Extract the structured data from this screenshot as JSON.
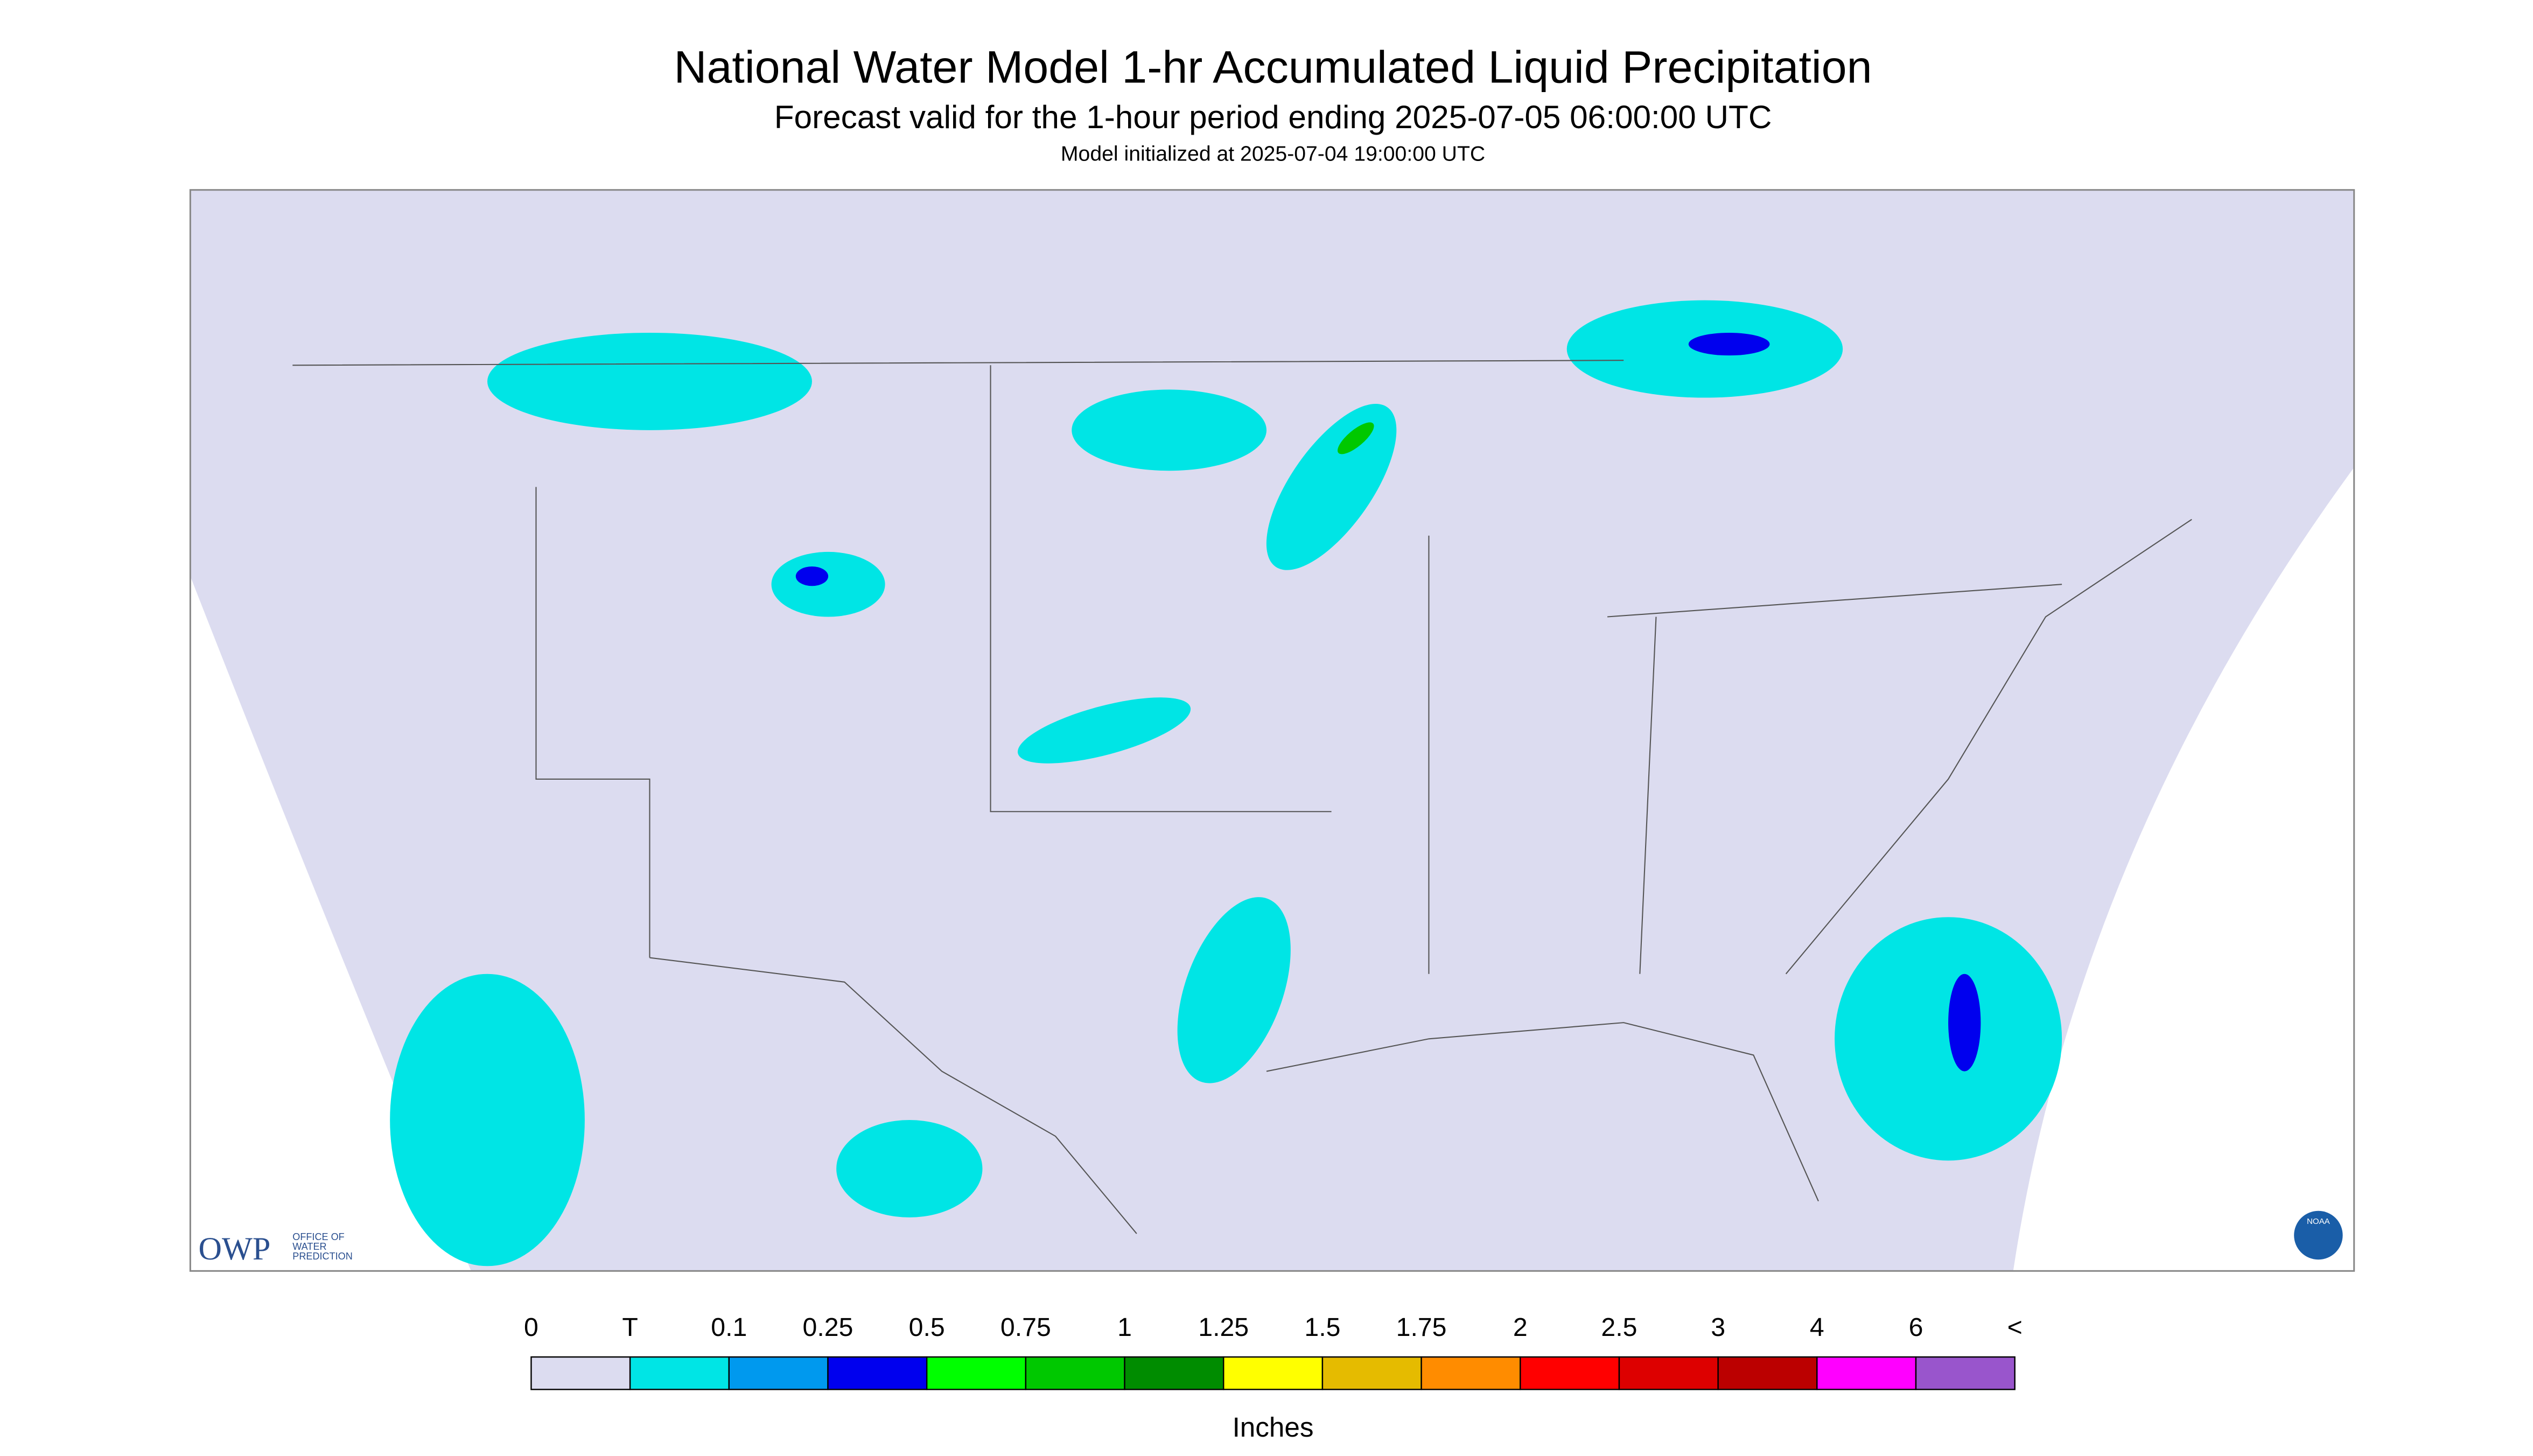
{
  "header": {
    "title": "National Water Model 1-hr Accumulated Liquid Precipitation",
    "subtitle": "Forecast valid for the 1-hour period ending 2025-07-05 06:00:00 UTC",
    "note": "Model initialized at 2025-07-04 19:00:00 UTC"
  },
  "logo": {
    "mark": "OWP",
    "lines": [
      "OFFICE OF",
      "WATER",
      "PREDICTION"
    ],
    "badge": "NOAA"
  },
  "legend": {
    "labels": [
      "0",
      "T",
      "0.1",
      "0.25",
      "0.5",
      "0.75",
      "1",
      "1.25",
      "1.5",
      "1.75",
      "2",
      "2.5",
      "3",
      "4",
      "6",
      "<"
    ],
    "colors": [
      "#dcdcf0",
      "#00e5e5",
      "#0099ee",
      "#0000ee",
      "#00ff00",
      "#00c800",
      "#008c00",
      "#ffff00",
      "#e5bb00",
      "#ff8c00",
      "#ff0000",
      "#dd0000",
      "#bb0000",
      "#ff00ff",
      "#9955cc"
    ],
    "unit": "Inches"
  }
}
